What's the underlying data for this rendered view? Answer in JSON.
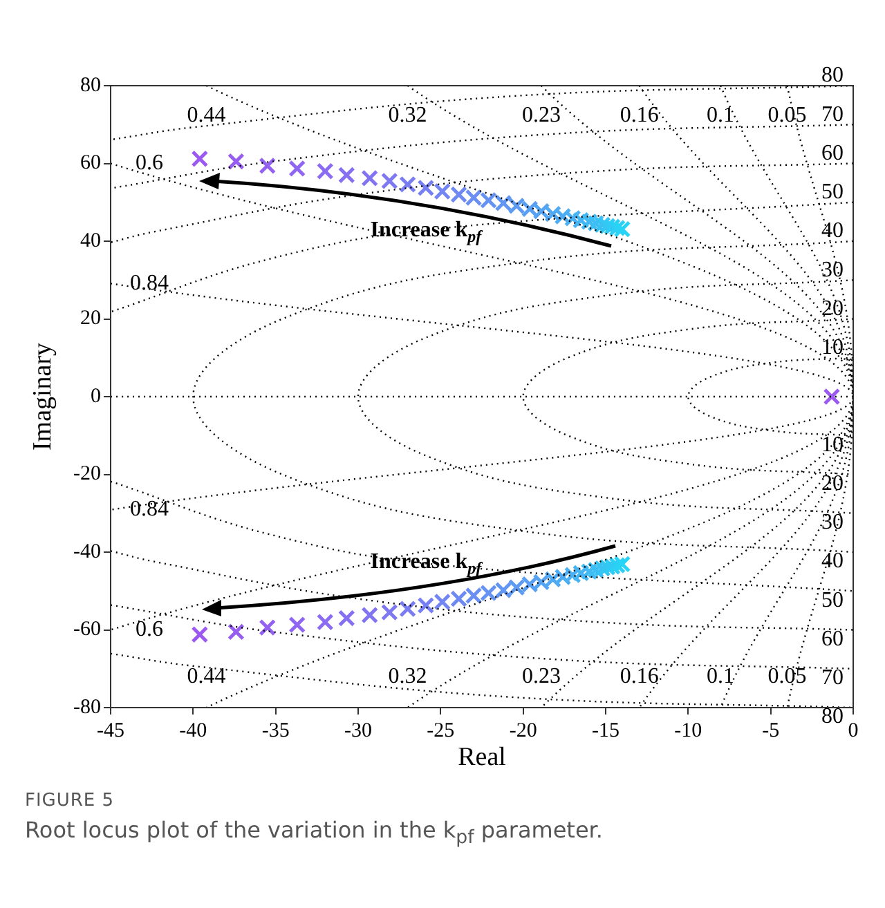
{
  "chart_data": {
    "type": "scatter",
    "xlabel": "Real",
    "ylabel": "Imaginary",
    "xlim": [
      -45,
      0
    ],
    "ylim": [
      -80,
      80
    ],
    "xticks": [
      -45,
      -40,
      -35,
      -30,
      -25,
      -20,
      -15,
      -10,
      -5,
      0
    ],
    "yticks": [
      -80,
      -60,
      -40,
      -20,
      0,
      20,
      40,
      60,
      80
    ],
    "marker": "cross",
    "legend": false,
    "series": [
      {
        "type": "line",
        "marker": "none",
        "line_style": "dotted",
        "color": "#000000",
        "x": [
          -45,
          0
        ],
        "values": [
          0,
          0
        ]
      },
      {
        "name": "0.05",
        "type": "line",
        "marker": "none",
        "line_style": "dotted",
        "color": "#000000",
        "x": [
          -4.0,
          0,
          -4.0
        ],
        "values": [
          80,
          0,
          -80
        ]
      },
      {
        "name": "0.1",
        "type": "line",
        "marker": "none",
        "line_style": "dotted",
        "color": "#000000",
        "x": [
          -8.04,
          0,
          -8.04
        ],
        "values": [
          80,
          0,
          -80
        ]
      },
      {
        "name": "0.16",
        "type": "line",
        "marker": "none",
        "line_style": "dotted",
        "color": "#000000",
        "x": [
          -12.96,
          0,
          -12.96
        ],
        "values": [
          80,
          0,
          -80
        ]
      },
      {
        "name": "0.23",
        "type": "line",
        "marker": "none",
        "line_style": "dotted",
        "color": "#000000",
        "x": [
          -18.9,
          0,
          -18.9
        ],
        "values": [
          80,
          0,
          -80
        ]
      },
      {
        "name": "0.32",
        "type": "line",
        "marker": "none",
        "line_style": "dotted",
        "color": "#000000",
        "x": [
          -27.0,
          0,
          -27.0
        ],
        "values": [
          80,
          0,
          -80
        ]
      },
      {
        "name": "0.44",
        "type": "line",
        "marker": "none",
        "line_style": "dotted",
        "color": "#000000",
        "x": [
          -39.2,
          0,
          -39.2
        ],
        "values": [
          80,
          0,
          -80
        ]
      },
      {
        "name": "0.6",
        "type": "line",
        "marker": "none",
        "line_style": "dotted",
        "color": "#000000",
        "x": [
          -45,
          0,
          -45
        ],
        "values": [
          60,
          0,
          -60
        ]
      },
      {
        "name": "0.84",
        "type": "line",
        "marker": "none",
        "line_style": "dotted",
        "color": "#000000",
        "x": [
          -45,
          0,
          -45
        ],
        "values": [
          29.1,
          0,
          -29.1
        ]
      },
      {
        "name": "10",
        "type": "line",
        "marker": "none",
        "line_style": "dotted",
        "color": "#000000",
        "x": [
          0,
          -5,
          -8.7,
          -10,
          -8.7,
          -5,
          0
        ],
        "values": [
          10,
          8.7,
          5,
          0,
          -5,
          -8.7,
          -10
        ]
      },
      {
        "name": "20",
        "type": "line",
        "marker": "none",
        "line_style": "dotted",
        "color": "#000000",
        "x": [
          0,
          -10,
          -17.3,
          -20,
          -17.3,
          -10,
          0
        ],
        "values": [
          20,
          17.3,
          10,
          0,
          -10,
          -17.3,
          -20
        ]
      },
      {
        "name": "30",
        "type": "line",
        "marker": "none",
        "line_style": "dotted",
        "color": "#000000",
        "x": [
          0,
          -15,
          -26,
          -30,
          -26,
          -15,
          0
        ],
        "values": [
          30,
          26,
          15,
          0,
          -15,
          -26,
          -30
        ]
      },
      {
        "name": "40",
        "type": "line",
        "marker": "none",
        "line_style": "dotted",
        "color": "#000000",
        "x": [
          0,
          -20,
          -34.6,
          -40,
          -34.6,
          -20,
          0
        ],
        "values": [
          40,
          34.6,
          20,
          0,
          -20,
          -34.6,
          -40
        ]
      },
      {
        "name": "50",
        "type": "line",
        "marker": "none",
        "line_style": "dotted",
        "color": "#000000",
        "x": [
          0,
          -25,
          -35.4,
          -45,
          null,
          -45,
          -35.4,
          -25,
          0
        ],
        "values": [
          50,
          43.3,
          35.4,
          21.8,
          null,
          -21.8,
          -35.4,
          -43.3,
          -50
        ]
      },
      {
        "name": "60",
        "type": "line",
        "marker": "none",
        "line_style": "dotted",
        "color": "#000000",
        "x": [
          0,
          -15.5,
          -30,
          -42.4,
          -45,
          null,
          -45,
          -42.4,
          -30,
          -15.5,
          0
        ],
        "values": [
          60,
          58,
          52,
          42.4,
          39.7,
          null,
          -39.7,
          -42.4,
          -52,
          -58,
          -60
        ]
      },
      {
        "name": "70",
        "type": "line",
        "marker": "none",
        "line_style": "dotted",
        "color": "#000000",
        "x": [
          0,
          -18.1,
          -35,
          -45,
          null,
          -45,
          -35,
          -18.1,
          0
        ],
        "values": [
          70,
          67.6,
          60.6,
          53.6,
          null,
          -53.6,
          -60.6,
          -67.6,
          -70
        ]
      },
      {
        "name": "80",
        "type": "line",
        "marker": "none",
        "line_style": "dotted",
        "color": "#000000",
        "x": [
          0,
          -20.7,
          -40,
          -45,
          null,
          -45,
          -40,
          -20.7,
          0
        ],
        "values": [
          80,
          77.3,
          69.3,
          66.1,
          null,
          -66.1,
          -69.3,
          -77.3,
          -80
        ]
      },
      {
        "x": [
          -39.6,
          -37.4,
          -35.5,
          -33.7,
          -32.0,
          -30.7,
          -29.3,
          -28.1,
          -27.0,
          -25.9,
          -24.9,
          -23.9,
          -23.0,
          -22.1,
          -21.2,
          -20.4,
          -19.6,
          -18.9,
          -18.2,
          -17.6,
          -17.0,
          -16.5,
          -16.0,
          -15.6,
          -15.2,
          -14.9,
          -14.6,
          -14.3,
          -14.0
        ],
        "values": [
          61.2,
          60.5,
          59.4,
          58.7,
          58.0,
          57.0,
          56.2,
          55.5,
          54.6,
          53.7,
          52.8,
          52.0,
          51.2,
          50.5,
          49.8,
          49.1,
          48.3,
          47.7,
          47.0,
          46.4,
          45.9,
          45.4,
          45.0,
          44.6,
          44.2,
          43.9,
          43.7,
          43.4,
          43.1
        ],
        "colors": [
          "#9b59f0",
          "#975df0",
          "#9362f0",
          "#8f66f1",
          "#8b6bf1",
          "#866ff1",
          "#8273f1",
          "#7e78f1",
          "#7a7cf1",
          "#7680f2",
          "#7285f2",
          "#6e89f2",
          "#6a8ef2",
          "#6692f2",
          "#6296f3",
          "#5d9bf3",
          "#599ff3",
          "#55a4f3",
          "#51a8f3",
          "#4dacf3",
          "#49b1f4",
          "#45b5f4",
          "#41baf4",
          "#3dbef4",
          "#38c2f4",
          "#34c7f4",
          "#30cbf5",
          "#2cd0f5",
          "#28d4f5"
        ]
      },
      {
        "x": [
          -39.6,
          -37.4,
          -35.5,
          -33.7,
          -32.0,
          -30.7,
          -29.3,
          -28.1,
          -27.0,
          -25.9,
          -24.9,
          -23.9,
          -23.0,
          -22.1,
          -21.2,
          -20.4,
          -19.6,
          -18.9,
          -18.2,
          -17.6,
          -17.0,
          -16.5,
          -16.0,
          -15.6,
          -15.2,
          -14.9,
          -14.6,
          -14.3,
          -14.0
        ],
        "values": [
          -61.2,
          -60.5,
          -59.4,
          -58.7,
          -58.0,
          -57.0,
          -56.2,
          -55.5,
          -54.6,
          -53.7,
          -52.8,
          -52.0,
          -51.2,
          -50.5,
          -49.8,
          -49.1,
          -48.3,
          -47.7,
          -47.0,
          -46.4,
          -45.9,
          -45.4,
          -45.0,
          -44.6,
          -44.2,
          -43.9,
          -43.7,
          -43.4,
          -43.1
        ],
        "colors": [
          "#9b59f0",
          "#975df0",
          "#9362f0",
          "#8f66f1",
          "#8b6bf1",
          "#866ff1",
          "#8273f1",
          "#7e78f1",
          "#7a7cf1",
          "#7680f2",
          "#7285f2",
          "#6e89f2",
          "#6a8ef2",
          "#6692f2",
          "#6296f3",
          "#5d9bf3",
          "#599ff3",
          "#55a4f3",
          "#51a8f3",
          "#4dacf3",
          "#49b1f4",
          "#45b5f4",
          "#41baf4",
          "#3dbef4",
          "#38c2f4",
          "#34c7f4",
          "#30cbf5",
          "#2cd0f5",
          "#28d4f5"
        ]
      },
      {
        "color": "#9b59f0",
        "x": [
          -1.3
        ],
        "values": [
          0
        ]
      }
    ],
    "annotations": [
      {
        "text": "Increase k$_{pf}$",
        "x": -25.9,
        "y": 53.7
      },
      {
        "text": "Increase k$_{pf}$",
        "x": -25.9,
        "y": -53.7
      },
      "FIGURE 5",
      "Root locus plot of the variation in the k$_{pf}$ parameter."
    ]
  }
}
